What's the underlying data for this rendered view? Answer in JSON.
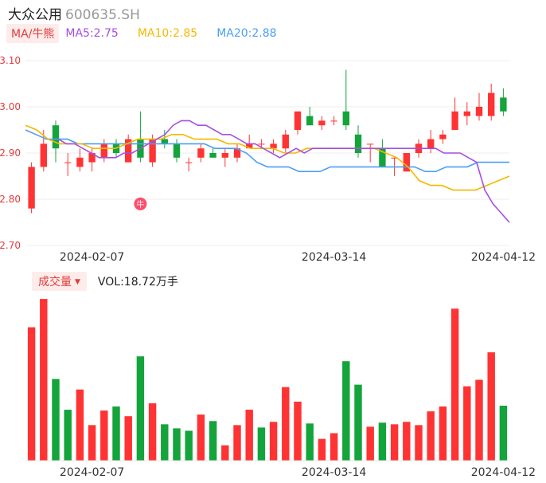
{
  "header": {
    "name": "大众公用",
    "code": "600635.SH"
  },
  "legend": {
    "tag": "MA/牛熊",
    "ma5": "MA5:2.75",
    "ma10": "MA10:2.85",
    "ma20": "MA20:2.88",
    "colors": {
      "ma5": "#a64fe0",
      "ma10": "#f5b800",
      "ma20": "#4a9ef5",
      "up": "#ff3333",
      "down": "#13a43b"
    }
  },
  "volume": {
    "tag": "成交量",
    "label": "VOL:18.72万手"
  },
  "bull_marker": "牛",
  "chart_data": [
    {
      "type": "candlestick",
      "title": "",
      "y_ticks": [
        "3.10",
        "3.00",
        "2.90",
        "2.80",
        "2.70"
      ],
      "ylim": [
        2.7,
        3.1
      ],
      "x_tick_labels": [
        "2024-02-07",
        "2024-03-14",
        "2024-04-12"
      ],
      "grid": true,
      "candles": [
        {
          "o": 2.78,
          "c": 2.87,
          "h": 2.88,
          "l": 2.77
        },
        {
          "o": 2.87,
          "c": 2.92,
          "h": 2.95,
          "l": 2.86
        },
        {
          "o": 2.96,
          "c": 2.91,
          "h": 2.97,
          "l": 2.88
        },
        {
          "o": 2.88,
          "c": 2.88,
          "h": 2.9,
          "l": 2.85
        },
        {
          "o": 2.87,
          "c": 2.89,
          "h": 2.91,
          "l": 2.86
        },
        {
          "o": 2.88,
          "c": 2.9,
          "h": 2.91,
          "l": 2.86
        },
        {
          "o": 2.89,
          "c": 2.92,
          "h": 2.93,
          "l": 2.88
        },
        {
          "o": 2.92,
          "c": 2.9,
          "h": 2.93,
          "l": 2.89
        },
        {
          "o": 2.88,
          "c": 2.93,
          "h": 2.94,
          "l": 2.88
        },
        {
          "o": 2.93,
          "c": 2.89,
          "h": 2.99,
          "l": 2.88
        },
        {
          "o": 2.88,
          "c": 2.93,
          "h": 2.94,
          "l": 2.87
        },
        {
          "o": 2.93,
          "c": 2.92,
          "h": 2.95,
          "l": 2.91
        },
        {
          "o": 2.92,
          "c": 2.89,
          "h": 2.93,
          "l": 2.88
        },
        {
          "o": 2.88,
          "c": 2.88,
          "h": 2.89,
          "l": 2.86
        },
        {
          "o": 2.89,
          "c": 2.91,
          "h": 2.92,
          "l": 2.88
        },
        {
          "o": 2.9,
          "c": 2.89,
          "h": 2.91,
          "l": 2.89
        },
        {
          "o": 2.89,
          "c": 2.9,
          "h": 2.91,
          "l": 2.87
        },
        {
          "o": 2.89,
          "c": 2.91,
          "h": 2.92,
          "l": 2.88
        },
        {
          "o": 2.91,
          "c": 2.92,
          "h": 2.94,
          "l": 2.91
        },
        {
          "o": 2.92,
          "c": 2.92,
          "h": 2.93,
          "l": 2.91
        },
        {
          "o": 2.91,
          "c": 2.92,
          "h": 2.93,
          "l": 2.9
        },
        {
          "o": 2.91,
          "c": 2.94,
          "h": 2.95,
          "l": 2.9
        },
        {
          "o": 2.95,
          "c": 2.99,
          "h": 2.99,
          "l": 2.94
        },
        {
          "o": 2.98,
          "c": 2.96,
          "h": 3.0,
          "l": 2.96
        },
        {
          "o": 2.96,
          "c": 2.97,
          "h": 2.98,
          "l": 2.95
        },
        {
          "o": 2.97,
          "c": 2.97,
          "h": 2.98,
          "l": 2.96
        },
        {
          "o": 2.99,
          "c": 2.96,
          "h": 3.08,
          "l": 2.95
        },
        {
          "o": 2.94,
          "c": 2.9,
          "h": 2.96,
          "l": 2.89
        },
        {
          "o": 2.92,
          "c": 2.92,
          "h": 2.92,
          "l": 2.88
        },
        {
          "o": 2.91,
          "c": 2.87,
          "h": 2.93,
          "l": 2.87
        },
        {
          "o": 2.89,
          "c": 2.89,
          "h": 2.89,
          "l": 2.85
        },
        {
          "o": 2.86,
          "c": 2.9,
          "h": 2.9,
          "l": 2.86
        },
        {
          "o": 2.9,
          "c": 2.92,
          "h": 2.93,
          "l": 2.89
        },
        {
          "o": 2.91,
          "c": 2.93,
          "h": 2.95,
          "l": 2.9
        },
        {
          "o": 2.93,
          "c": 2.94,
          "h": 2.95,
          "l": 2.92
        },
        {
          "o": 2.95,
          "c": 2.99,
          "h": 3.02,
          "l": 2.95
        },
        {
          "o": 2.98,
          "c": 2.99,
          "h": 3.01,
          "l": 2.96
        },
        {
          "o": 2.98,
          "c": 3.0,
          "h": 3.03,
          "l": 2.97
        },
        {
          "o": 2.98,
          "c": 3.03,
          "h": 3.05,
          "l": 2.97
        },
        {
          "o": 3.02,
          "c": 2.99,
          "h": 3.04,
          "l": 2.98
        }
      ],
      "ma5": [
        null,
        null,
        null,
        null,
        2.93,
        2.92,
        2.92,
        2.91,
        2.9,
        2.89,
        2.89,
        2.89,
        2.9,
        2.9,
        2.91,
        2.92,
        2.93,
        2.94,
        2.96,
        2.97,
        2.97,
        2.96,
        2.96,
        2.95,
        2.94,
        2.94,
        2.93,
        2.92,
        2.92,
        2.91,
        2.9,
        2.89,
        2.9,
        2.91,
        2.9,
        2.91,
        2.91,
        2.91,
        2.91,
        2.91,
        2.91,
        2.91,
        2.91,
        2.91,
        2.91,
        2.91,
        2.91,
        2.91,
        2.91,
        2.91,
        2.91,
        2.9,
        2.9,
        2.9,
        2.89,
        2.88,
        2.82,
        2.79,
        2.77,
        2.75
      ],
      "ma10": [
        2.96,
        2.95,
        2.93,
        2.92,
        2.92,
        2.92,
        2.91,
        2.91,
        2.91,
        2.92,
        2.93,
        2.93,
        2.93,
        2.94,
        2.94,
        2.93,
        2.93,
        2.93,
        2.92,
        2.92,
        2.91,
        2.91,
        2.91,
        2.9,
        2.9,
        2.91,
        2.91,
        2.91,
        2.91,
        2.91,
        2.91,
        2.91,
        2.9,
        2.89,
        2.87,
        2.84,
        2.83,
        2.83,
        2.82,
        2.82,
        2.82,
        2.83,
        2.84,
        2.85
      ],
      "ma20": [
        2.95,
        2.94,
        2.93,
        2.93,
        2.93,
        2.92,
        2.92,
        2.92,
        2.92,
        2.92,
        2.92,
        2.92,
        2.92,
        2.92,
        2.92,
        2.92,
        2.92,
        2.92,
        2.91,
        2.91,
        2.91,
        2.9,
        2.88,
        2.87,
        2.87,
        2.87,
        2.86,
        2.86,
        2.86,
        2.87,
        2.87,
        2.87,
        2.87,
        2.87,
        2.87,
        2.87,
        2.87,
        2.87,
        2.86,
        2.86,
        2.87,
        2.87,
        2.87,
        2.88,
        2.88,
        2.88,
        2.88
      ]
    },
    {
      "type": "bar",
      "title": "",
      "x_tick_labels": [
        "2024-02-07",
        "2024-03-14",
        "2024-04-12"
      ],
      "values": [
        16.5,
        20.0,
        10.1,
        6.3,
        8.8,
        4.4,
        6.2,
        6.7,
        5.5,
        12.9,
        7.1,
        4.5,
        4.0,
        3.7,
        5.7,
        4.9,
        1.9,
        4.4,
        6.3,
        4.1,
        4.8,
        9.1,
        7.3,
        4.6,
        2.7,
        3.4,
        12.3,
        9.4,
        4.2,
        4.7,
        4.5,
        4.8,
        4.4,
        6.1,
        6.7,
        18.8,
        9.2,
        10.0,
        13.4,
        6.8
      ],
      "directions": [
        "up",
        "up",
        "down",
        "down",
        "up",
        "up",
        "up",
        "down",
        "up",
        "down",
        "up",
        "down",
        "down",
        "down",
        "up",
        "down",
        "up",
        "up",
        "up",
        "down",
        "up",
        "up",
        "up",
        "down",
        "up",
        "up",
        "down",
        "down",
        "up",
        "down",
        "up",
        "up",
        "up",
        "up",
        "up",
        "up",
        "up",
        "up",
        "up",
        "down"
      ]
    }
  ]
}
